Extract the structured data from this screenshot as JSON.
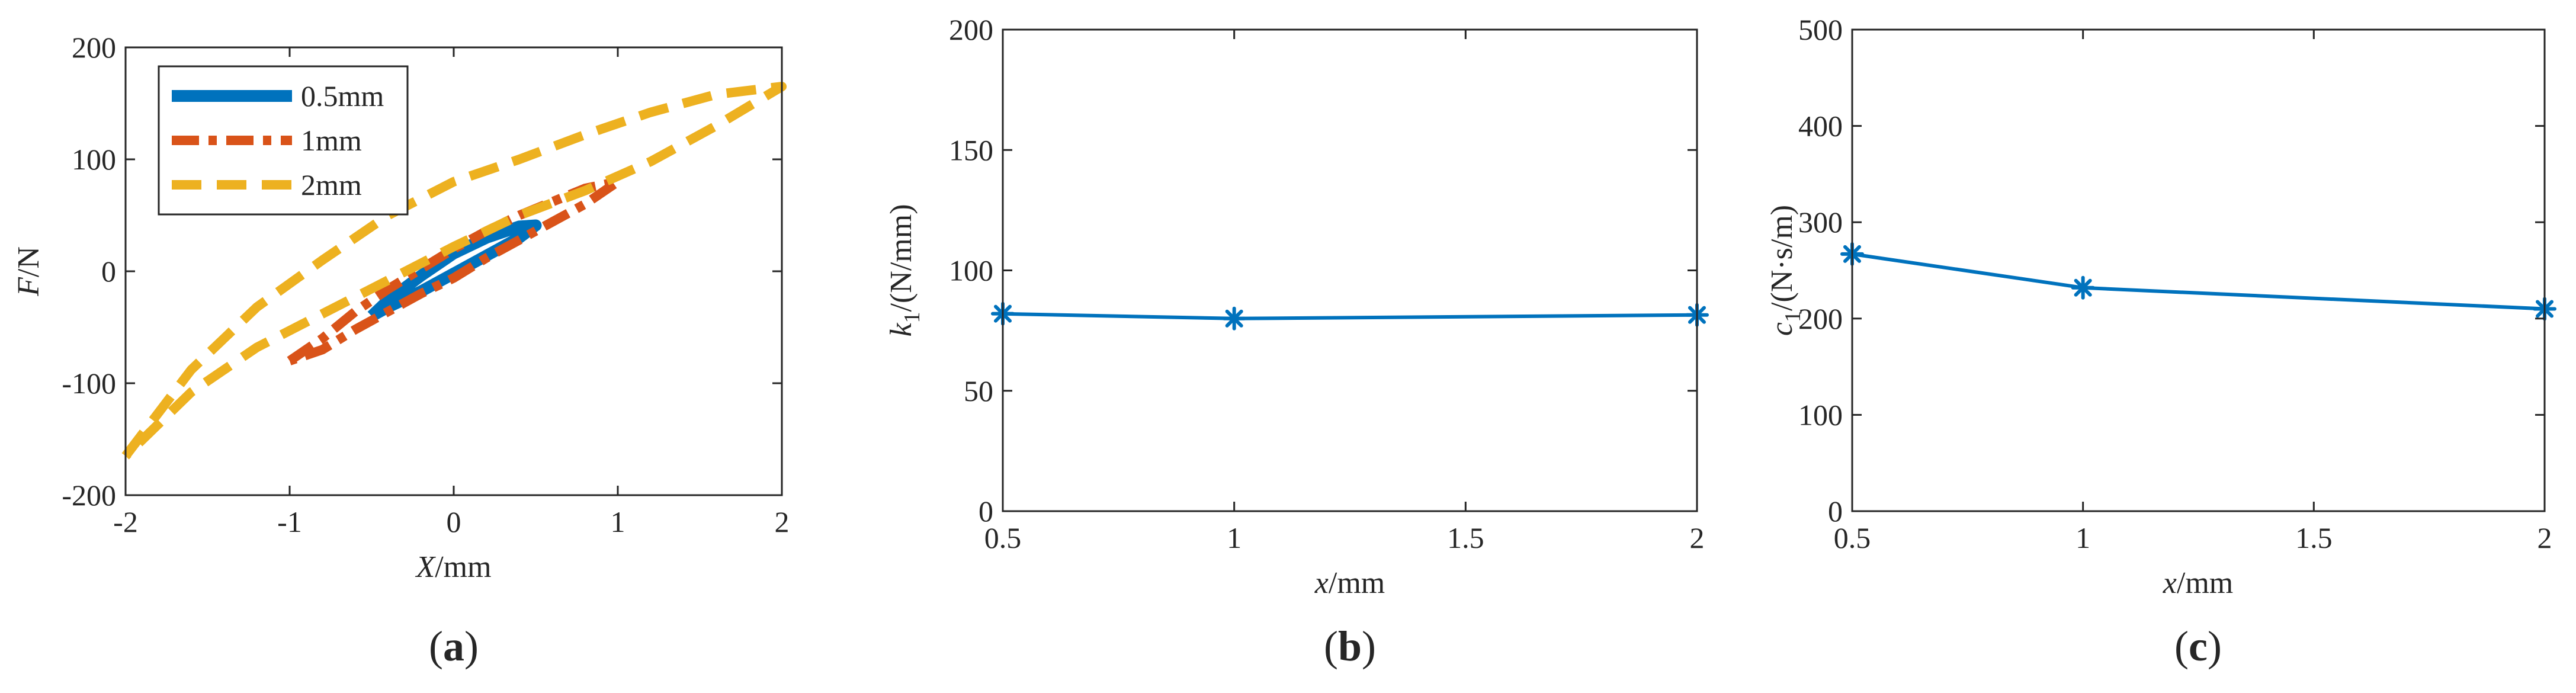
{
  "chart_data": [
    {
      "panel_label": "(a)",
      "type": "line",
      "xlabel": "X/mm",
      "ylabel": "F/N",
      "xlim": [
        -2,
        2
      ],
      "ylim": [
        -200,
        200
      ],
      "xticks": [
        "-2",
        "-1",
        "0",
        "1",
        "2"
      ],
      "yticks": [
        "200",
        "100",
        "0",
        "-100",
        "-200"
      ],
      "grid": false,
      "legend_position": "top-left",
      "series": [
        {
          "name": "0.5mm",
          "color": "#0072BD",
          "style": "solid",
          "x": [
            -0.5,
            -0.4,
            -0.2,
            0.0,
            0.2,
            0.4,
            0.5,
            0.4,
            0.2,
            0.0,
            -0.2,
            -0.4,
            -0.5
          ],
          "y": [
            -40,
            -26,
            -4,
            16,
            30,
            40,
            41,
            30,
            14,
            -2,
            -18,
            -32,
            -40
          ]
        },
        {
          "name": "1mm",
          "color": "#D95319",
          "style": "dashdot",
          "x": [
            -1.0,
            -0.8,
            -0.6,
            -0.4,
            -0.2,
            0.0,
            0.2,
            0.4,
            0.6,
            0.8,
            1.0,
            0.8,
            0.6,
            0.4,
            0.2,
            0.0,
            -0.2,
            -0.4,
            -0.6,
            -0.8,
            -1.0
          ],
          "y": [
            -80,
            -60,
            -36,
            -16,
            2,
            20,
            36,
            50,
            62,
            74,
            80,
            60,
            44,
            28,
            12,
            -6,
            -20,
            -36,
            -52,
            -70,
            -80
          ]
        },
        {
          "name": "2mm",
          "color": "#EDB120",
          "style": "dashed",
          "x": [
            -2.0,
            -1.6,
            -1.2,
            -0.8,
            -0.4,
            0.0,
            0.4,
            0.8,
            1.2,
            1.6,
            2.0,
            1.6,
            1.2,
            0.8,
            0.4,
            0.0,
            -0.4,
            -0.8,
            -1.2,
            -1.6,
            -2.0
          ],
          "y": [
            -165,
            -88,
            -32,
            10,
            50,
            80,
            100,
            122,
            142,
            158,
            165,
            130,
            98,
            72,
            50,
            22,
            -8,
            -38,
            -68,
            -108,
            -165
          ]
        }
      ]
    },
    {
      "panel_label": "(b)",
      "type": "line",
      "xlabel": "x/mm",
      "ylabel_main": "k",
      "ylabel_sub": "1",
      "ylabel_rest": "/(N/mm)",
      "xlim": [
        0.5,
        2
      ],
      "ylim": [
        0,
        200
      ],
      "xticks": [
        "0.5",
        "1",
        "1.5",
        "2"
      ],
      "yticks": [
        "200",
        "150",
        "100",
        "50",
        "0"
      ],
      "grid": false,
      "series": [
        {
          "color": "#0072BD",
          "marker": "asterisk",
          "x": [
            0.5,
            1,
            2
          ],
          "y": [
            82,
            80,
            81.5
          ]
        }
      ]
    },
    {
      "panel_label": "(c)",
      "type": "line",
      "xlabel": "x/mm",
      "ylabel_main": "c",
      "ylabel_sub": "1",
      "ylabel_rest": "/(N·s/m)",
      "xlim": [
        0.5,
        2
      ],
      "ylim": [
        0,
        500
      ],
      "xticks": [
        "0.5",
        "1",
        "1.5",
        "2"
      ],
      "yticks": [
        "500",
        "400",
        "300",
        "200",
        "100",
        "0"
      ],
      "grid": false,
      "series": [
        {
          "color": "#0072BD",
          "marker": "asterisk",
          "x": [
            0.5,
            1,
            2
          ],
          "y": [
            267,
            232,
            210
          ]
        }
      ]
    }
  ]
}
